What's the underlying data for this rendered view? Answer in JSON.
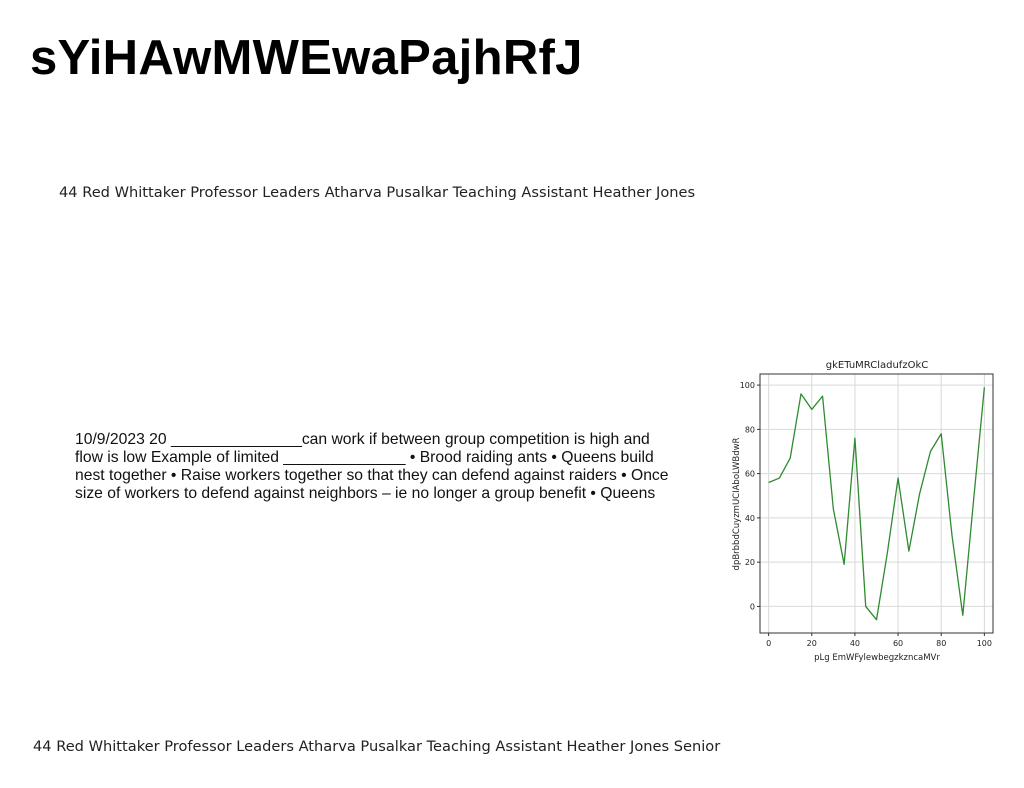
{
  "slide": {
    "title": "sYiHAwMWEwaPajhRfJ",
    "subtitle": "44 Red Whittaker Professor Leaders Atharva Pusalkar Teaching Assistant Heather Jones",
    "body_text": "10/9/2023 20 _______________can work if between group competition is high and flow is low Example of limited ______________ • Brood raiding ants • Queens build nest together • Raise workers together so that they can defend against raiders • Once size of workers to defend against neighbors – ie no longer a group benefit • Queens",
    "footer": "44 Red Whittaker Professor Leaders Atharva Pusalkar Teaching Assistant Heather Jones Senior"
  },
  "chart_data": {
    "type": "line",
    "title": "gkETuMRCladufzOkC",
    "xlabel": "pLg EmWFylewbegzkzncaMVr",
    "ylabel": "dpBrbbdCuyzmUCIAboLWBdwR",
    "x": [
      0,
      5,
      10,
      15,
      20,
      25,
      30,
      35,
      40,
      45,
      50,
      55,
      60,
      65,
      70,
      75,
      80,
      85,
      90,
      95,
      100
    ],
    "series": [
      {
        "values": [
          56,
          58,
          67,
          96,
          89,
          95,
          44,
          19,
          76,
          0,
          -6,
          24,
          58,
          25,
          51,
          70,
          78,
          32,
          -4,
          48,
          99
        ]
      }
    ],
    "xlim": [
      -4,
      104
    ],
    "ylim": [
      -12,
      105
    ],
    "xticks": [
      0,
      20,
      40,
      60,
      80,
      100
    ],
    "yticks": [
      0,
      20,
      40,
      60,
      80,
      100
    ],
    "grid": true,
    "line_color": "#2e8b2e"
  }
}
